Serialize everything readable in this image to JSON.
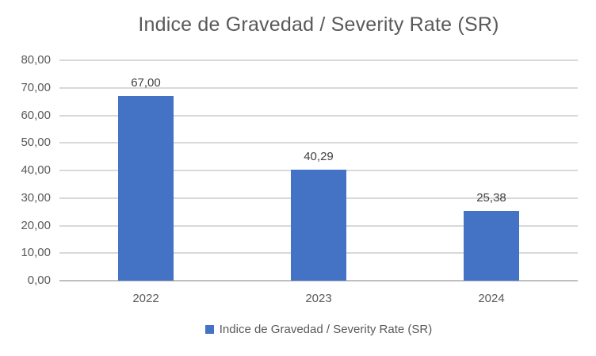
{
  "title": "Indice de Gravedad / Severity Rate (SR)",
  "chart_data": {
    "type": "bar",
    "title": "Indice de Gravedad / Severity Rate (SR)",
    "categories": [
      "2022",
      "2023",
      "2024"
    ],
    "series": [
      {
        "name": "Indice de Gravedad / Severity Rate (SR)",
        "values": [
          67.0,
          40.29,
          25.38
        ],
        "value_labels": [
          "67,00",
          "40,29",
          "25,38"
        ],
        "color": "#4472C4"
      }
    ],
    "xlabel": "",
    "ylabel": "",
    "ylim": [
      0,
      80
    ],
    "yticks": [
      {
        "value": 80,
        "label": "80,00"
      },
      {
        "value": 70,
        "label": "70,00"
      },
      {
        "value": 60,
        "label": "60,00"
      },
      {
        "value": 50,
        "label": "50,00"
      },
      {
        "value": 40,
        "label": "40,00"
      },
      {
        "value": 30,
        "label": "30,00"
      },
      {
        "value": 20,
        "label": "20,00"
      },
      {
        "value": 10,
        "label": "10,00"
      },
      {
        "value": 0,
        "label": "0,00"
      }
    ],
    "grid": true,
    "legend_position": "bottom"
  },
  "legend": {
    "label": "Indice de Gravedad / Severity Rate (SR)",
    "swatch_color": "#4472C4"
  },
  "colors": {
    "bar": "#4472C4",
    "gridline": "#D9D9D9",
    "axis_line": "#BFBFBF",
    "title_text": "#595959",
    "tick_text": "#595959",
    "data_label_text": "#404040",
    "background": "#FFFFFF"
  }
}
